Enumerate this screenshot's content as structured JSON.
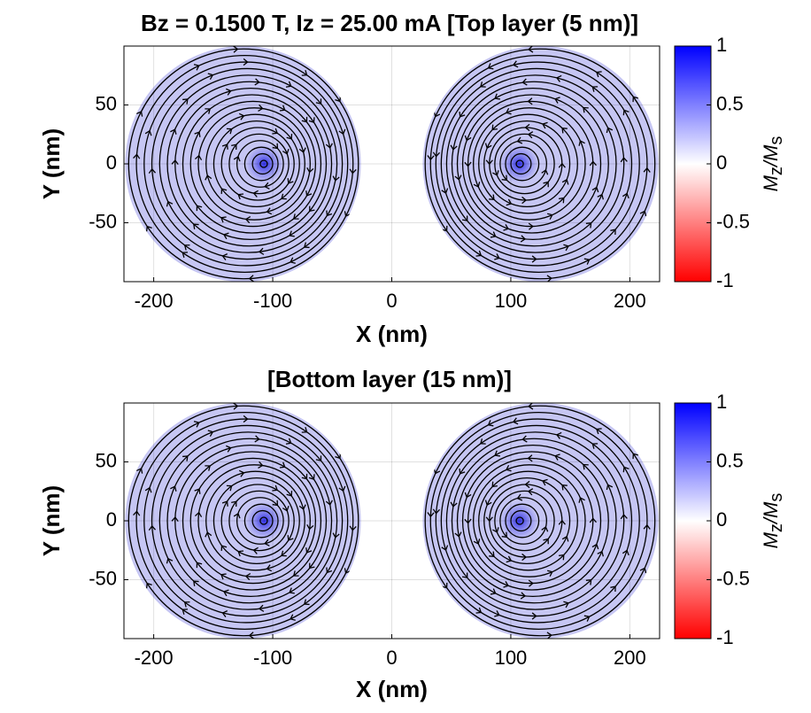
{
  "chart_data": [
    {
      "type": "streamline",
      "title": "Bz = 0.1500 T, Iz = 25.00 mA [Top layer (5 nm)]",
      "xlabel": "X (nm)",
      "ylabel": "Y (nm)",
      "xlim": [
        -225,
        225
      ],
      "ylim": [
        -100,
        100
      ],
      "xticks": [
        -200,
        -100,
        0,
        100,
        200
      ],
      "yticks": [
        -50,
        0,
        50
      ],
      "grid": true,
      "colorbar": {
        "clim": [
          -1,
          1
        ],
        "ticks": [
          -1,
          -0.5,
          0,
          0.5,
          1
        ],
        "colormap": [
          "#ff0000",
          "#ffffff",
          "#0000ff"
        ],
        "label": [
          {
            "text": "M"
          },
          {
            "text": "z",
            "sub": true
          },
          {
            "text": "/M"
          },
          {
            "text": "s",
            "sub": true
          }
        ]
      }
    },
    {
      "type": "streamline",
      "title": "[Bottom layer (15 nm)]",
      "xlabel": "X (nm)",
      "ylabel": "Y (nm)",
      "xlim": [
        -225,
        225
      ],
      "ylim": [
        -100,
        100
      ],
      "xticks": [
        -200,
        -100,
        0,
        100,
        200
      ],
      "yticks": [
        -50,
        0,
        50
      ],
      "grid": true,
      "colorbar": {
        "clim": [
          -1,
          1
        ],
        "ticks": [
          -1,
          -0.5,
          0,
          0.5,
          1
        ],
        "colormap": [
          "#ff0000",
          "#ffffff",
          "#0000ff"
        ],
        "label": [
          {
            "text": "M"
          },
          {
            "text": "z",
            "sub": true
          },
          {
            "text": "/M"
          },
          {
            "text": "s",
            "sub": true
          }
        ]
      }
    }
  ]
}
